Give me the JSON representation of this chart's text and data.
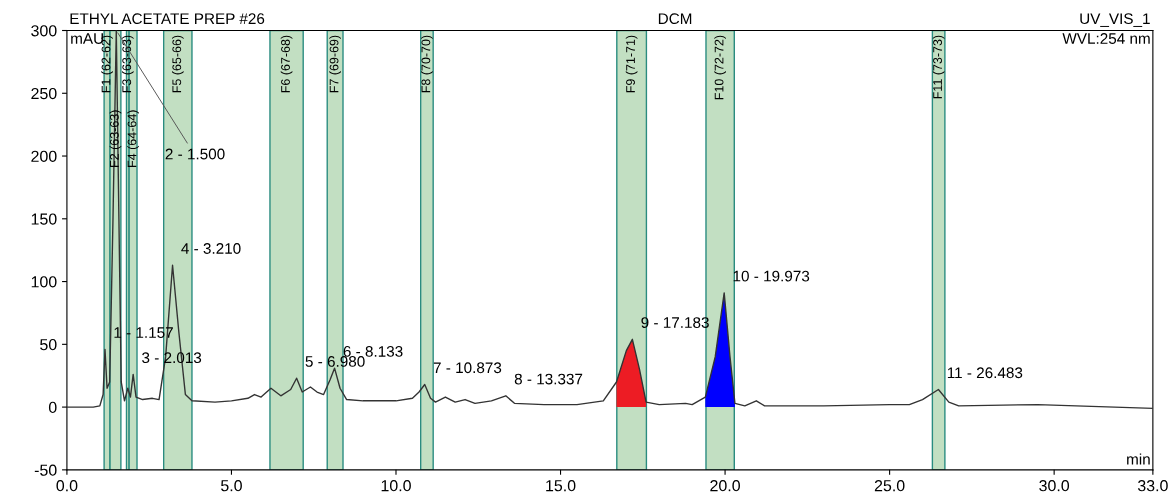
{
  "chart_data": {
    "type": "line",
    "title": "ETHYL ACETATE PREP #26",
    "subtitle": "DCM",
    "xlabel": "min",
    "ylabel": "mAU",
    "xlim": [
      0,
      33
    ],
    "ylim": [
      -50,
      300
    ],
    "xticks": [
      {
        "value": 0,
        "label": "0.0"
      },
      {
        "value": 5,
        "label": "5.0"
      },
      {
        "value": 10,
        "label": "10.0"
      },
      {
        "value": 15,
        "label": "15.0"
      },
      {
        "value": 20,
        "label": "20.0"
      },
      {
        "value": 25,
        "label": "25.0"
      },
      {
        "value": 30,
        "label": "30.0"
      },
      {
        "value": 33,
        "label": "33.0"
      }
    ],
    "yticks": [
      -50,
      0,
      50,
      100,
      150,
      200,
      250,
      300
    ],
    "grid": false,
    "legend": false,
    "marker": "none",
    "line_style": "solid",
    "series": [
      {
        "color": "#333333",
        "x": [
          0,
          0.8,
          1.0,
          1.1,
          1.157,
          1.22,
          1.3,
          1.4,
          1.5,
          1.58,
          1.65,
          1.75,
          1.85,
          1.93,
          2.013,
          2.1,
          2.3,
          2.6,
          2.8,
          3.0,
          3.21,
          3.4,
          3.6,
          3.8,
          4.5,
          5.0,
          5.5,
          5.7,
          5.9,
          6.2,
          6.5,
          6.8,
          6.98,
          7.15,
          7.4,
          7.6,
          7.8,
          8.0,
          8.133,
          8.3,
          8.5,
          9.0,
          10.0,
          10.5,
          10.7,
          10.873,
          11.05,
          11.2,
          11.5,
          11.8,
          12.1,
          12.4,
          12.9,
          13.337,
          13.6,
          14.5,
          15.5,
          16.3,
          16.7,
          17.0,
          17.183,
          17.4,
          17.6,
          18.0,
          18.8,
          19.0,
          19.4,
          19.7,
          19.973,
          20.15,
          20.3,
          20.6,
          20.95,
          21.2,
          23,
          25,
          25.6,
          26.0,
          26.483,
          26.8,
          27.1,
          29.5,
          33
        ],
        "values": [
          0,
          0,
          1,
          10,
          46,
          15,
          20,
          150,
          300,
          150,
          20,
          5,
          15,
          8,
          26,
          8,
          6,
          7,
          6,
          40,
          113,
          60,
          10,
          5,
          4,
          5,
          7,
          10,
          8,
          15,
          9,
          14,
          23,
          12,
          16,
          12,
          10,
          22,
          31,
          15,
          6,
          5,
          5,
          7,
          12,
          18,
          7,
          4,
          8,
          4,
          6,
          3,
          5,
          9,
          3,
          2,
          2,
          5,
          20,
          45,
          54,
          30,
          4,
          2,
          3,
          2,
          8,
          40,
          91,
          40,
          3,
          1,
          5,
          1,
          1,
          2,
          2,
          6,
          14,
          4,
          1,
          2,
          -1
        ]
      },
      {
        "type": "area",
        "color": "#ed1c24",
        "x": [
          16.7,
          17.0,
          17.183,
          17.4,
          17.6
        ],
        "values": [
          20,
          45,
          54,
          30,
          4
        ]
      },
      {
        "type": "area",
        "color": "#0000ff",
        "x": [
          19.4,
          19.7,
          19.973,
          20.15,
          20.3
        ],
        "values": [
          8,
          40,
          91,
          40,
          3
        ]
      }
    ],
    "bands": [
      {
        "axis": "x",
        "from": 1.13,
        "to": 1.31,
        "label": "F1 (62-62)",
        "color": "#c2dfc2"
      },
      {
        "axis": "x",
        "from": 1.31,
        "to": 1.64,
        "label": "F2 (63-63)",
        "color": "#c2dfc2"
      },
      {
        "axis": "x",
        "from": 1.81,
        "to": 1.89,
        "label": "F3 (63-63)",
        "color": "#c2dfc2"
      },
      {
        "axis": "x",
        "from": 1.89,
        "to": 2.13,
        "label": "F4 (64-64)",
        "color": "#c2dfc2"
      },
      {
        "axis": "x",
        "from": 2.94,
        "to": 3.8,
        "label": "F5 (65-66)",
        "color": "#c2dfc2"
      },
      {
        "axis": "x",
        "from": 6.17,
        "to": 7.18,
        "label": "F6 (67-68)",
        "color": "#c2dfc2"
      },
      {
        "axis": "x",
        "from": 7.91,
        "to": 8.39,
        "label": "F7 (69-69)",
        "color": "#c2dfc2"
      },
      {
        "axis": "x",
        "from": 10.75,
        "to": 11.13,
        "label": "F8 (70-70)",
        "color": "#c2dfc2"
      },
      {
        "axis": "x",
        "from": 16.71,
        "to": 17.61,
        "label": "F9 (71-71)",
        "color": "#c2dfc2"
      },
      {
        "axis": "x",
        "from": 19.42,
        "to": 20.28,
        "label": "F10 (72-72)",
        "color": "#c2dfc2"
      },
      {
        "axis": "x",
        "from": 26.3,
        "to": 26.68,
        "label": "F11 (73-73)",
        "color": "#c2dfc2"
      }
    ],
    "annotations": [
      {
        "text": "1 - 1.157",
        "x": 1.157,
        "y": 46
      },
      {
        "text": "2 - 1.500",
        "x": 1.5,
        "y": 300
      },
      {
        "text": "3 - 2.013",
        "x": 2.013,
        "y": 26
      },
      {
        "text": "4 - 3.210",
        "x": 3.21,
        "y": 113
      },
      {
        "text": "5 - 6.980",
        "x": 6.98,
        "y": 23
      },
      {
        "text": "6 - 8.133",
        "x": 8.133,
        "y": 31
      },
      {
        "text": "7 - 10.873",
        "x": 10.873,
        "y": 18
      },
      {
        "text": "8 - 13.337",
        "x": 13.337,
        "y": 9
      },
      {
        "text": "9 - 17.183",
        "x": 17.183,
        "y": 54
      },
      {
        "text": "10 - 19.973",
        "x": 19.973,
        "y": 91
      },
      {
        "text": "11 - 26.483",
        "x": 26.483,
        "y": 14
      },
      "UV_VIS_1",
      "WVL:254 nm"
    ]
  }
}
